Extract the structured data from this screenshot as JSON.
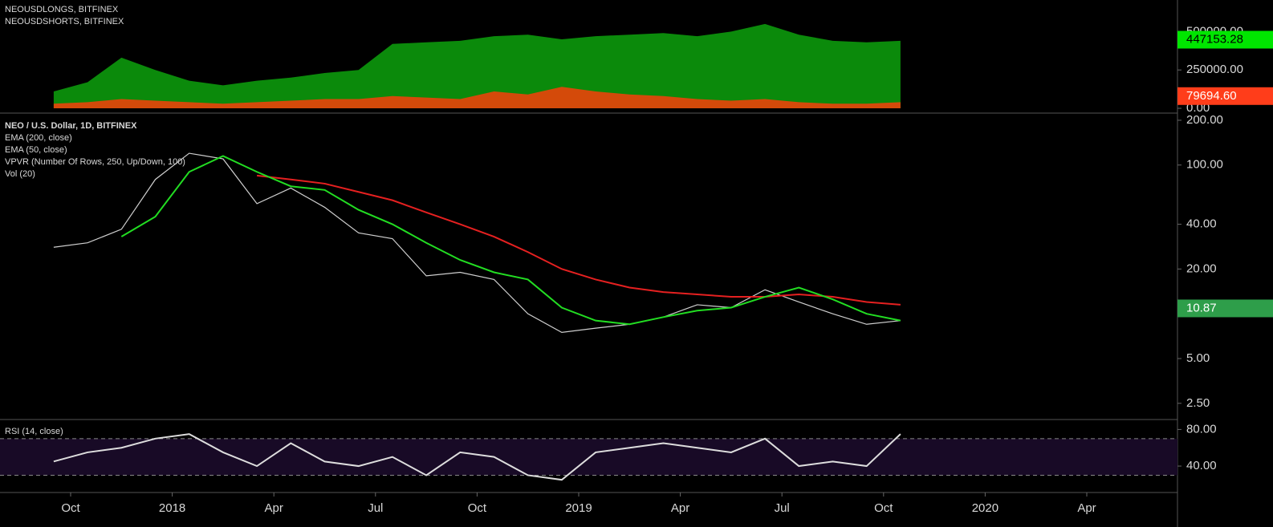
{
  "x_axis": {
    "ticks": [
      {
        "value": "2017-10",
        "label": "Oct"
      },
      {
        "value": "2018-01",
        "label": "2018"
      },
      {
        "value": "2018-04",
        "label": "Apr"
      },
      {
        "value": "2018-07",
        "label": "Jul"
      },
      {
        "value": "2018-10",
        "label": "Oct"
      },
      {
        "value": "2019-01",
        "label": "2019"
      },
      {
        "value": "2019-04",
        "label": "Apr"
      },
      {
        "value": "2019-07",
        "label": "Jul"
      },
      {
        "value": "2019-10",
        "label": "Oct"
      },
      {
        "value": "2020-01",
        "label": "2020"
      },
      {
        "value": "2020-04",
        "label": "Apr"
      }
    ]
  },
  "chart_data": [
    {
      "type": "area",
      "x": [
        "2017-09",
        "2017-10",
        "2017-11",
        "2017-12",
        "2018-01",
        "2018-02",
        "2018-03",
        "2018-04",
        "2018-05",
        "2018-06",
        "2018-07",
        "2018-08",
        "2018-09",
        "2018-10",
        "2018-11",
        "2018-12",
        "2019-01",
        "2019-02",
        "2019-03",
        "2019-04",
        "2019-05",
        "2019-06",
        "2019-07",
        "2019-08",
        "2019-09",
        "2019-10"
      ],
      "ylim": [
        -26000,
        685000
      ],
      "yticks": [
        {
          "value": 500000,
          "label": "500000.00"
        },
        {
          "value": 250000,
          "label": "250000.00"
        },
        {
          "value": 0,
          "label": "0.00"
        }
      ],
      "series": [
        {
          "name": "NEOUSDLONGS, BITFINEX",
          "color": "#0b8a0b",
          "label_color": "#00e600",
          "values": [
            110000,
            170000,
            330000,
            250000,
            180000,
            150000,
            180000,
            200000,
            230000,
            250000,
            420000,
            430000,
            440000,
            470000,
            480000,
            450000,
            470000,
            480000,
            490000,
            470000,
            500000,
            550000,
            480000,
            440000,
            430000,
            440000
          ],
          "last_value": 447153.28
        },
        {
          "name": "NEOUSDSHORTS, BITFINEX",
          "color": "#d44a0a",
          "label_color": "#ff3d1a",
          "values": [
            30000,
            40000,
            60000,
            50000,
            40000,
            30000,
            40000,
            50000,
            60000,
            60000,
            80000,
            70000,
            60000,
            110000,
            90000,
            140000,
            110000,
            90000,
            80000,
            60000,
            50000,
            60000,
            40000,
            30000,
            30000,
            40000
          ],
          "last_value": {
            "value": 79694.6,
            "label": "79694.60"
          }
        }
      ]
    },
    {
      "type": "line",
      "log": true,
      "x": [
        "2017-09",
        "2017-10",
        "2017-11",
        "2017-12",
        "2018-01",
        "2018-02",
        "2018-03",
        "2018-04",
        "2018-05",
        "2018-06",
        "2018-07",
        "2018-08",
        "2018-09",
        "2018-10",
        "2018-11",
        "2018-12",
        "2019-01",
        "2019-02",
        "2019-03",
        "2019-04",
        "2019-05",
        "2019-06",
        "2019-07",
        "2019-08",
        "2019-09",
        "2019-10"
      ],
      "ylim": [
        1.97,
        218
      ],
      "yticks": [
        {
          "value": 200,
          "label": "200.00"
        },
        {
          "value": 100,
          "label": "100.00"
        },
        {
          "value": 40,
          "label": "40.00"
        },
        {
          "value": 20,
          "label": "20.00"
        },
        {
          "value": 5,
          "label": "5.00"
        },
        {
          "value": 2.5,
          "label": "2.50"
        }
      ],
      "indicators": [
        "VPVR (Number Of Rows, 250, Up/Down, 100)",
        "Vol (20)"
      ],
      "series": [
        {
          "name": "NEO / U.S. Dollar, 1D, BITFINEX",
          "color": "#cfcfcf",
          "label_color": "#2e9e4a",
          "values": [
            28,
            30,
            37,
            80,
            120,
            110,
            55,
            70,
            52,
            35,
            32,
            18,
            19,
            17,
            10,
            7.5,
            8,
            8.5,
            9.5,
            11.5,
            11,
            14.5,
            12,
            10,
            8.5,
            9
          ],
          "last_value": 10.87
        },
        {
          "name": "EMA (200, close)",
          "color": "#e52020",
          "values": [
            null,
            null,
            null,
            null,
            null,
            null,
            85,
            80,
            75,
            66,
            58,
            48,
            40,
            33,
            26,
            20,
            17,
            15,
            14,
            13.5,
            13,
            13,
            13.5,
            13,
            12,
            11.5
          ]
        },
        {
          "name": "EMA (50, close)",
          "color": "#22dd22",
          "values": [
            null,
            null,
            33,
            45,
            90,
            115,
            90,
            72,
            68,
            50,
            40,
            30,
            23,
            19,
            17,
            11,
            9,
            8.5,
            9.5,
            10.5,
            11,
            13,
            15,
            12.5,
            10,
            9
          ]
        }
      ]
    },
    {
      "type": "line",
      "x": [
        "2017-09",
        "2017-10",
        "2017-11",
        "2017-12",
        "2018-01",
        "2018-02",
        "2018-03",
        "2018-04",
        "2018-05",
        "2018-06",
        "2018-07",
        "2018-08",
        "2018-09",
        "2018-10",
        "2018-11",
        "2018-12",
        "2019-01",
        "2019-02",
        "2019-03",
        "2019-04",
        "2019-05",
        "2019-06",
        "2019-07",
        "2019-08",
        "2019-09",
        "2019-10"
      ],
      "ylim": [
        12,
        90
      ],
      "yticks": [
        {
          "value": 80,
          "label": "80.00"
        },
        {
          "value": 40,
          "label": "40.00"
        }
      ],
      "levels": [
        30,
        70
      ],
      "series": [
        {
          "name": "RSI (14, close)",
          "color": "#dddddd",
          "values": [
            45,
            55,
            60,
            70,
            75,
            55,
            40,
            65,
            45,
            40,
            50,
            30,
            55,
            50,
            30,
            25,
            55,
            60,
            65,
            60,
            55,
            70,
            40,
            45,
            40,
            75
          ]
        }
      ]
    }
  ]
}
